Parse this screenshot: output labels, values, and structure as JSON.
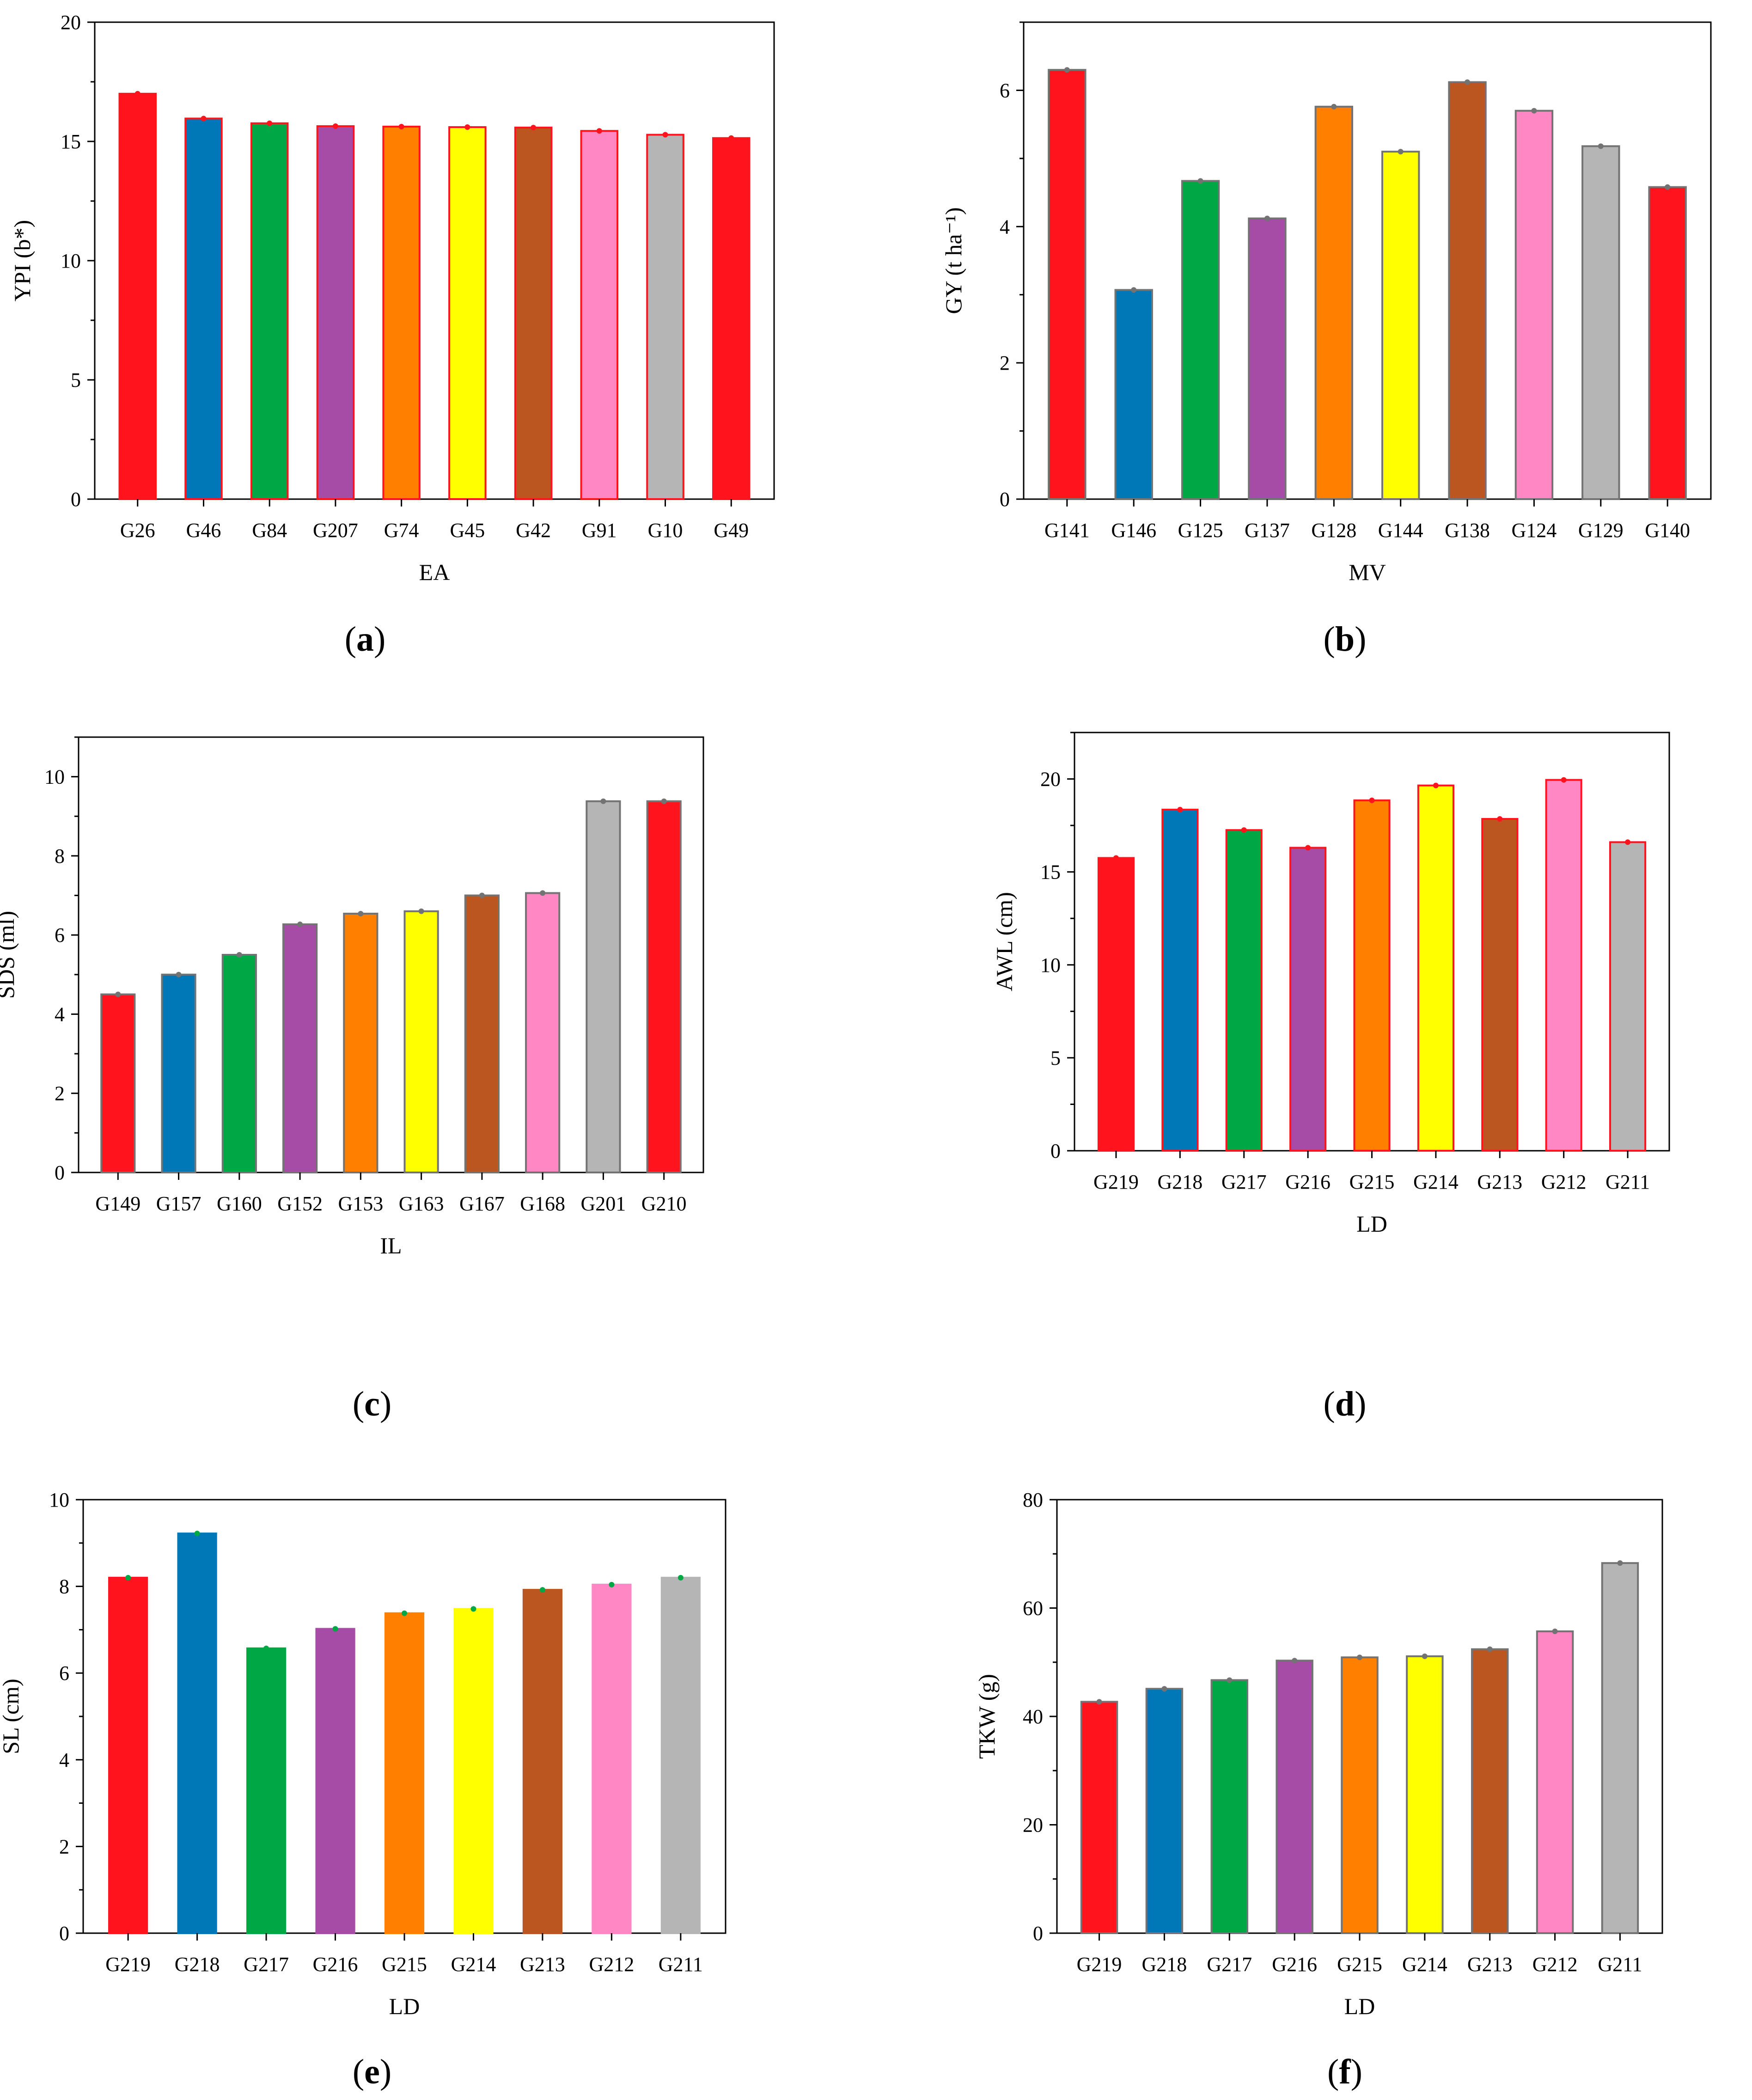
{
  "palette": [
    "#ff141e",
    "#0077b6",
    "#00a845",
    "#a74ca6",
    "#ff7f00",
    "#ffff00",
    "#bc5621",
    "#ff88c4",
    "#b5b5b5",
    "#ff141e"
  ],
  "chart_data": [
    {
      "id": "a",
      "type": "bar",
      "caption_letter": "a",
      "categories": [
        "G26",
        "G46",
        "G84",
        "G207",
        "G74",
        "G45",
        "G42",
        "G91",
        "G10",
        "G49"
      ],
      "values": [
        17.0,
        15.96,
        15.76,
        15.64,
        15.62,
        15.6,
        15.58,
        15.44,
        15.28,
        15.14
      ],
      "xlabel": "EA",
      "ylabel": "YPI (b*)",
      "ylim": [
        0,
        20
      ],
      "yticks": [
        0,
        5,
        10,
        15,
        20
      ],
      "yticklabels": [
        "0",
        "5",
        "10",
        "15",
        "20"
      ],
      "bar_edge": "#ff141e",
      "marker": "#ff141e"
    },
    {
      "id": "b",
      "type": "bar",
      "caption_letter": "b",
      "categories": [
        "G141",
        "G146",
        "G125",
        "G137",
        "G128",
        "G144",
        "G138",
        "G124",
        "G129",
        "G140"
      ],
      "values": [
        6.3,
        3.07,
        4.67,
        4.12,
        5.76,
        5.1,
        6.12,
        5.7,
        5.18,
        4.58
      ],
      "xlabel": "MV",
      "ylabel": "GY (t ha⁻¹)",
      "ylim": [
        0,
        7
      ],
      "yticks": [
        0,
        2,
        4,
        6
      ],
      "yticklabels": [
        "0",
        "2",
        "4",
        "6"
      ],
      "bar_edge": "#737373",
      "marker": "#737373"
    },
    {
      "id": "c",
      "type": "bar",
      "caption_letter": "c",
      "categories": [
        "G149",
        "G157",
        "G160",
        "G152",
        "G153",
        "G163",
        "G167",
        "G168",
        "G201",
        "G210"
      ],
      "values": [
        4.5,
        5.0,
        5.5,
        6.27,
        6.54,
        6.6,
        7.0,
        7.06,
        9.38,
        9.38
      ],
      "xlabel": "IL",
      "ylabel": "SDS (ml)",
      "ylim": [
        0,
        11
      ],
      "yticks": [
        0,
        2,
        4,
        6,
        8,
        10
      ],
      "yticklabels": [
        "0",
        "2",
        "4",
        "6",
        "8",
        "10"
      ],
      "bar_edge": "#737373",
      "marker": "#737373"
    },
    {
      "id": "d",
      "type": "bar",
      "caption_letter": "d",
      "categories": [
        "G219",
        "G218",
        "G217",
        "G216",
        "G215",
        "G214",
        "G213",
        "G212",
        "G211"
      ],
      "values": [
        15.75,
        18.35,
        17.25,
        16.3,
        18.85,
        19.65,
        17.85,
        19.95,
        16.6
      ],
      "xlabel": "LD",
      "ylabel": "AWL (cm)",
      "ylim": [
        0,
        22.5
      ],
      "yticks": [
        0,
        5,
        10,
        15,
        20
      ],
      "yticklabels": [
        "0",
        "5",
        "10",
        "15",
        "20"
      ],
      "bar_edge": "#ff141e",
      "marker": "#ff141e"
    },
    {
      "id": "e",
      "type": "bar",
      "caption_letter": "e",
      "categories": [
        "G219",
        "G218",
        "G217",
        "G216",
        "G215",
        "G214",
        "G213",
        "G212",
        "G211"
      ],
      "values": [
        8.2,
        9.22,
        6.57,
        7.02,
        7.38,
        7.48,
        7.92,
        8.04,
        8.2
      ],
      "xlabel": "LD",
      "ylabel": "SL (cm)",
      "ylim": [
        0,
        10
      ],
      "yticks": [
        0,
        2,
        4,
        6,
        8,
        10
      ],
      "yticklabels": [
        "0",
        "2",
        "4",
        "6",
        "8",
        "10"
      ],
      "bar_edge": "none",
      "marker": "#00a845"
    },
    {
      "id": "f",
      "type": "bar",
      "caption_letter": "f",
      "categories": [
        "G219",
        "G218",
        "G217",
        "G216",
        "G215",
        "G214",
        "G213",
        "G212",
        "G211"
      ],
      "values": [
        42.7,
        45.1,
        46.7,
        50.3,
        50.9,
        51.1,
        52.4,
        55.7,
        68.3
      ],
      "xlabel": "LD",
      "ylabel": "TKW (g)",
      "ylim": [
        0,
        80
      ],
      "yticks": [
        0,
        20,
        40,
        60,
        80
      ],
      "yticklabels": [
        "0",
        "20",
        "40",
        "60",
        "80"
      ],
      "bar_edge": "#737373",
      "marker": "#737373"
    }
  ]
}
